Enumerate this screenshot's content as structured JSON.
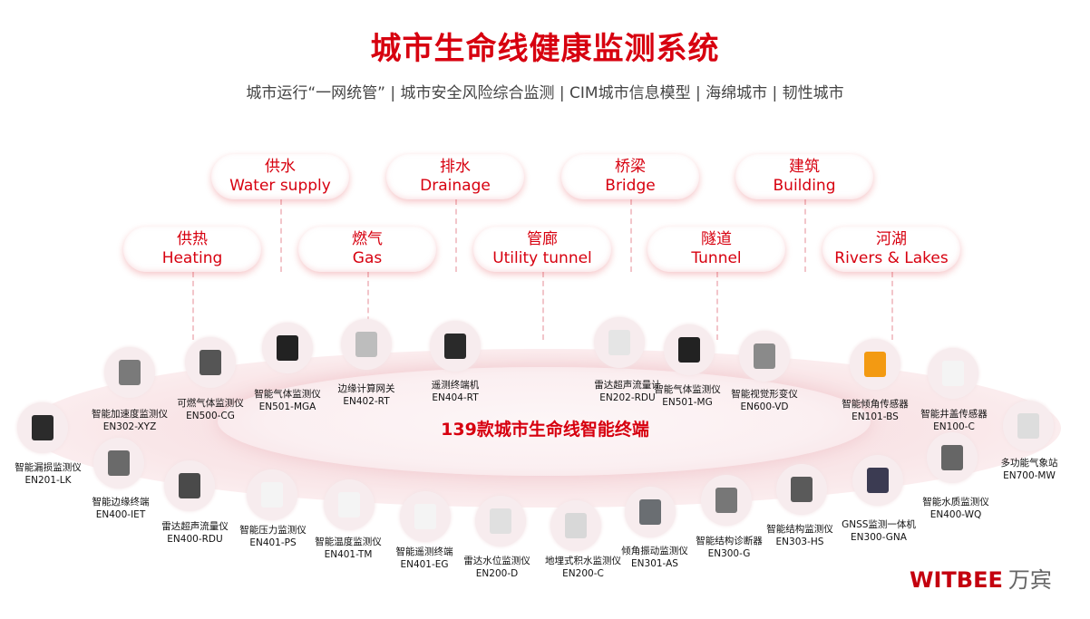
{
  "header": {
    "title": "城市生命线健康监测系统",
    "subtitle": "城市运行“一网统管” | 城市安全风险综合监测 | CIM城市信息模型 | 海绵城市 | 韧性城市"
  },
  "categories": [
    {
      "cn": "供水",
      "en": "Water supply"
    },
    {
      "cn": "排水",
      "en": "Drainage"
    },
    {
      "cn": "桥梁",
      "en": "Bridge"
    },
    {
      "cn": "建筑",
      "en": "Building"
    },
    {
      "cn": "供热",
      "en": "Heating"
    },
    {
      "cn": "燃气",
      "en": "Gas"
    },
    {
      "cn": "管廊",
      "en": "Utility tunnel"
    },
    {
      "cn": "隧道",
      "en": "Tunnel"
    },
    {
      "cn": "河湖",
      "en": "Rivers & Lakes"
    }
  ],
  "center_label": "139款城市生命线智能终端",
  "devices": [
    {
      "name": "智能加速度监测仪",
      "model": "EN302-XYZ",
      "color": "#7a7a7a"
    },
    {
      "name": "可燃气体监测仪",
      "model": "EN500-CG",
      "color": "#555555"
    },
    {
      "name": "智能气体监测仪",
      "model": "EN501-MGA",
      "color": "#222222"
    },
    {
      "name": "边缘计算网关",
      "model": "EN402-RT",
      "color": "#bdbdbd"
    },
    {
      "name": "遥测终端机",
      "model": "EN404-RT",
      "color": "#2a2a2a"
    },
    {
      "name": "雷达超声流量计",
      "model": "EN202-RDU",
      "color": "#e5e5e5"
    },
    {
      "name": "智能气体监测仪",
      "model": "EN501-MG",
      "color": "#222222"
    },
    {
      "name": "智能视觉形变仪",
      "model": "EN600-VD",
      "color": "#8a8a8a"
    },
    {
      "name": "智能倾角传感器",
      "model": "EN101-BS",
      "color": "#f39a12"
    },
    {
      "name": "智能井盖传感器",
      "model": "EN100-C",
      "color": "#f4f4f4"
    },
    {
      "name": "多功能气象站",
      "model": "EN700-MW",
      "color": "#dddddd"
    },
    {
      "name": "智能漏损监测仪",
      "model": "EN201-LK",
      "color": "#2b2b2b"
    },
    {
      "name": "智能边缘终端",
      "model": "EN400-IET",
      "color": "#6a6a6a"
    },
    {
      "name": "雷达超声流量仪",
      "model": "EN400-RDU",
      "color": "#4a4a4a"
    },
    {
      "name": "智能压力监测仪",
      "model": "EN401-PS",
      "color": "#f4f4f4"
    },
    {
      "name": "智能温度监测仪",
      "model": "EN401-TM",
      "color": "#f4f4f4"
    },
    {
      "name": "智能遥测终端",
      "model": "EN401-EG",
      "color": "#f4f4f4"
    },
    {
      "name": "雷达水位监测仪",
      "model": "EN200-D",
      "color": "#e0e0e0"
    },
    {
      "name": "地埋式积水监测仪",
      "model": "EN200-C",
      "color": "#d8d8d8"
    },
    {
      "name": "倾角振动监测仪",
      "model": "EN301-AS",
      "color": "#6a6e72"
    },
    {
      "name": "智能结构诊断器",
      "model": "EN300-G",
      "color": "#777777"
    },
    {
      "name": "智能结构监测仪",
      "model": "EN303-HS",
      "color": "#5a5a5a"
    },
    {
      "name": "GNSS监测一体机",
      "model": "EN300-GNA",
      "color": "#3b3b52"
    },
    {
      "name": "智能水质监测仪",
      "model": "EN400-WQ",
      "color": "#666666"
    }
  ],
  "logo": {
    "brand": "WITBEE",
    "cn": "万宾"
  },
  "colors": {
    "accent": "#d7000f",
    "glow": "#f6d9dd"
  }
}
